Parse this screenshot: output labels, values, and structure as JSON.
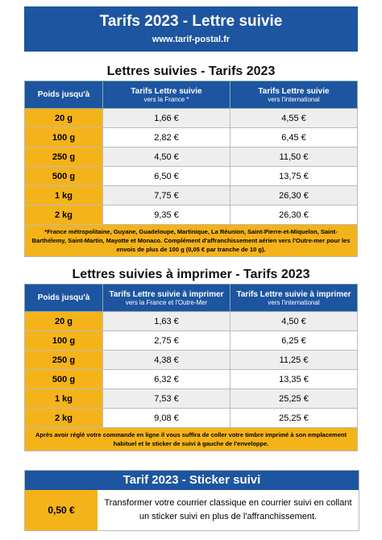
{
  "header": {
    "title": "Tarifs 2023 - Lettre suivie",
    "url": "www.tarif-postal.fr"
  },
  "sections": [
    {
      "title": "Lettres suivies - Tarifs 2023",
      "col0": "Poids jusqu'à",
      "col1": {
        "title": "Tarifs Lettre suivie",
        "sub": "vers la France *"
      },
      "col2": {
        "title": "Tarifs Lettre suivie",
        "sub": "vers l'international"
      },
      "rows": [
        [
          "20 g",
          "1,66 €",
          "4,55 €"
        ],
        [
          "100 g",
          "2,82 €",
          "6,45 €"
        ],
        [
          "250 g",
          "4,50 €",
          "11,50 €"
        ],
        [
          "500 g",
          "6,50 €",
          "13,75 €"
        ],
        [
          "1 kg",
          "7,75 €",
          "26,30 €"
        ],
        [
          "2 kg",
          "9,35 €",
          "26,30 €"
        ]
      ],
      "note": "*France métropolitaine, Guyane, Guadeloupe, Martinique, La Réunion, Saint-Pierre-et-Miquelon, Saint-Barthélemy, Saint-Martin, Mayotte et Monaco. Complément d'affranchissement aérien vers l'Outre-mer pour les envois de plus de 100 g (0,05 € par tranche de 10 g)."
    },
    {
      "title": "Lettres suivies à imprimer - Tarifs 2023",
      "col0": "Poids jusqu'à",
      "col1": {
        "title": "Tarifs Lettre suivie à imprimer",
        "sub": "vers la France et l'Outre-Mer"
      },
      "col2": {
        "title": "Tarifs Lettre suivie à imprimer",
        "sub": "vers l'international"
      },
      "rows": [
        [
          "20 g",
          "1,63 €",
          "4,50 €"
        ],
        [
          "100 g",
          "2,75 €",
          "6,25 €"
        ],
        [
          "250 g",
          "4,38 €",
          "11,25 €"
        ],
        [
          "500 g",
          "6,32 €",
          "13,35 €"
        ],
        [
          "1 kg",
          "7,53 €",
          "25,25 €"
        ],
        [
          "2 kg",
          "9,08 €",
          "25,25 €"
        ]
      ],
      "note": "Après avoir réglé votre commande en ligne il vous suffira de coller votre timbre imprimé à son emplacement habituel et le sticker de suivi à gauche de l'enveloppe."
    }
  ],
  "sticker": {
    "title": "Tarif 2023 - Sticker suivi",
    "price": "0,50 €",
    "text": "Transformer votre courrier classique en courrier suivi en collant un sticker suivi en plus de l'affranchissement."
  }
}
